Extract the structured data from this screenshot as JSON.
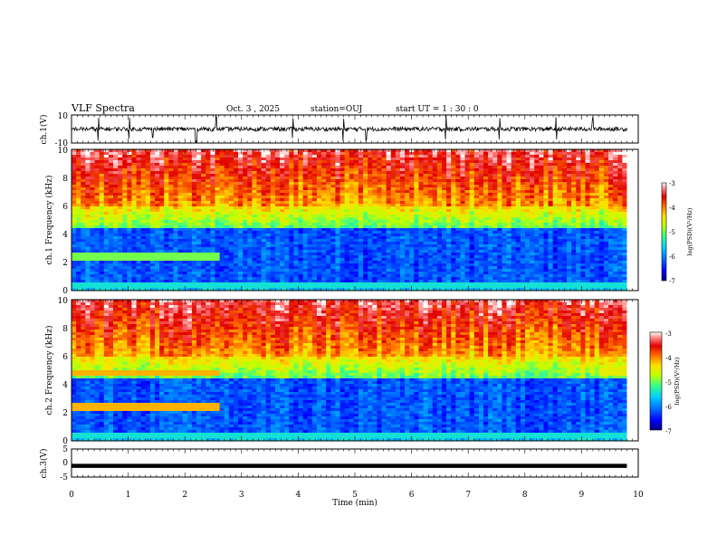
{
  "header": {
    "title": "VLF Spectra",
    "date": "Oct. 3 , 2025",
    "station": "station=OUJ",
    "start": "start UT = 1 : 30 : 0"
  },
  "chart_data": [
    {
      "type": "line",
      "name": "ch1-waveform",
      "ylabel": "ch.1(V)",
      "ylim": [
        -10,
        10
      ],
      "yticks": [
        "10",
        "-10"
      ],
      "xlim": [
        0,
        10
      ],
      "baseline": 0,
      "spike_times_min": [
        0.47,
        1.02,
        1.43,
        2.2,
        2.55,
        3.9,
        4.8,
        5.2,
        6.6,
        7.55,
        8.55,
        9.2
      ],
      "grid": false
    },
    {
      "type": "heatmap",
      "name": "ch1-spectrogram",
      "ylabel": "ch.1 Frequency (kHz)",
      "ylim": [
        0,
        10
      ],
      "yticks": [
        "0",
        "2",
        "4",
        "6",
        "8",
        "10"
      ],
      "xlim": [
        0,
        10
      ],
      "colorbar": {
        "label": "log(PSD)(V²/Hz)",
        "range": [
          -7,
          -3
        ],
        "ticks": [
          "-3",
          "-4",
          "-5",
          "-6",
          "-7"
        ]
      }
    },
    {
      "type": "heatmap",
      "name": "ch2-spectrogram",
      "ylabel": "ch.2 Frequency (kHz)",
      "ylim": [
        0,
        10
      ],
      "yticks": [
        "0",
        "2",
        "4",
        "6",
        "8",
        "10"
      ],
      "xlim": [
        0,
        10
      ],
      "colorbar": {
        "label": "log(PSD)(V²/Hz)",
        "range": [
          -7,
          -3
        ],
        "ticks": [
          "-3",
          "-4",
          "-5",
          "-6",
          "-7"
        ]
      }
    },
    {
      "type": "line",
      "name": "ch3-waveform",
      "ylabel": "ch.3(V)",
      "ylim": [
        -5,
        5
      ],
      "yticks": [
        "5",
        "0",
        "-5"
      ],
      "xlim": [
        0,
        10
      ],
      "level": -1,
      "grid": false
    }
  ],
  "xaxis": {
    "label": "Time (min)",
    "ticks": [
      "0",
      "1",
      "2",
      "3",
      "4",
      "5",
      "6",
      "7",
      "8",
      "9",
      "10"
    ],
    "range": [
      0,
      10
    ],
    "cutoff": 9.8
  },
  "colors": {
    "frame": "#000000",
    "background": "#ffffff",
    "colormap": [
      "#000080",
      "#0000ff",
      "#0070ff",
      "#00d0ff",
      "#40ff80",
      "#c0ff00",
      "#ffe000",
      "#ff7000",
      "#e00000",
      "#ff8080",
      "#ffffff"
    ]
  }
}
